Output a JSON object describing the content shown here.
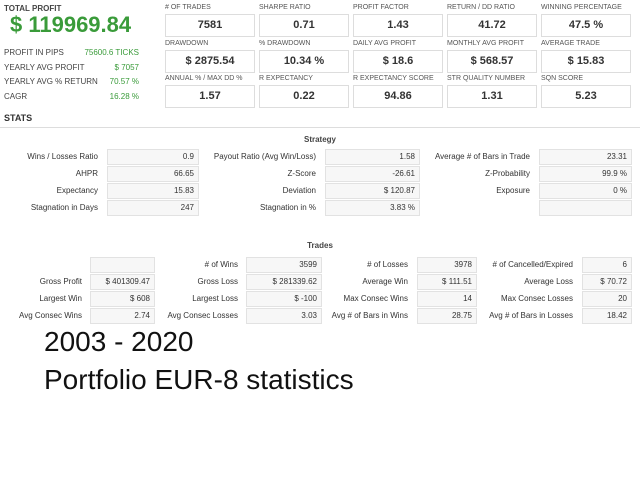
{
  "summary": {
    "label": "TOTAL PROFIT",
    "value": "$ 119969.84",
    "rows": [
      [
        "PROFIT IN PIPS",
        "75600.6 TICKS"
      ],
      [
        "YEARLY AVG PROFIT",
        "$ 7057"
      ],
      [
        "YEARLY AVG % RETURN",
        "70.57 %"
      ],
      [
        "CAGR",
        "16.28 %"
      ]
    ]
  },
  "metrics": [
    [
      [
        "# OF TRADES",
        "7581"
      ],
      [
        "SHARPE RATIO",
        "0.71"
      ],
      [
        "PROFIT FACTOR",
        "1.43"
      ],
      [
        "RETURN / DD RATIO",
        "41.72"
      ],
      [
        "WINNING PERCENTAGE",
        "47.5 %"
      ]
    ],
    [
      [
        "DRAWDOWN",
        "$ 2875.54"
      ],
      [
        "% DRAWDOWN",
        "10.34 %"
      ],
      [
        "DAILY AVG PROFIT",
        "$ 18.6"
      ],
      [
        "MONTHLY AVG PROFIT",
        "$ 568.57"
      ],
      [
        "AVERAGE TRADE",
        "$ 15.83"
      ]
    ],
    [
      [
        "ANNUAL % / MAX DD %",
        "1.57"
      ],
      [
        "R EXPECTANCY",
        "0.22"
      ],
      [
        "R EXPECTANCY SCORE",
        "94.86"
      ],
      [
        "STR QUALITY NUMBER",
        "1.31"
      ],
      [
        "SQN SCORE",
        "5.23"
      ]
    ]
  ],
  "stats_heading": "STATS",
  "strategy": {
    "title": "Strategy",
    "rows": [
      [
        [
          "Wins / Losses Ratio",
          "0.9"
        ],
        [
          "Payout Ratio (Avg Win/Loss)",
          "1.58"
        ],
        [
          "Average # of Bars in Trade",
          "23.31"
        ]
      ],
      [
        [
          "AHPR",
          "66.65"
        ],
        [
          "Z-Score",
          "-26.61"
        ],
        [
          "Z-Probability",
          "99.9 %"
        ]
      ],
      [
        [
          "Expectancy",
          "15.83"
        ],
        [
          "Deviation",
          "$ 120.87"
        ],
        [
          "Exposure",
          "0 %"
        ]
      ],
      [
        [
          "Stagnation in Days",
          "247"
        ],
        [
          "Stagnation in %",
          "3.83 %"
        ],
        null
      ]
    ]
  },
  "trades": {
    "title": "Trades",
    "rows": [
      [
        null,
        [
          "# of Wins",
          "3599"
        ],
        [
          "# of Losses",
          "3978"
        ],
        [
          "# of Cancelled/Expired",
          "6"
        ]
      ],
      [
        [
          "Gross Profit",
          "$ 401309.47"
        ],
        [
          "Gross Loss",
          "$ 281339.62"
        ],
        [
          "Average Win",
          "$ 111.51"
        ],
        [
          "Average Loss",
          "$ 70.72"
        ]
      ],
      [
        [
          "Largest Win",
          "$ 608"
        ],
        [
          "Largest Loss",
          "$ -100"
        ],
        [
          "Max Consec Wins",
          "14"
        ],
        [
          "Max Consec Losses",
          "20"
        ]
      ],
      [
        [
          "Avg Consec Wins",
          "2.74"
        ],
        [
          "Avg Consec Losses",
          "3.03"
        ],
        [
          "Avg # of Bars in Wins",
          "28.75"
        ],
        [
          "Avg # of Bars in Losses",
          "18.42"
        ]
      ]
    ]
  },
  "caption": [
    "2003 - 2020",
    "Portfolio EUR-8 statistics"
  ]
}
